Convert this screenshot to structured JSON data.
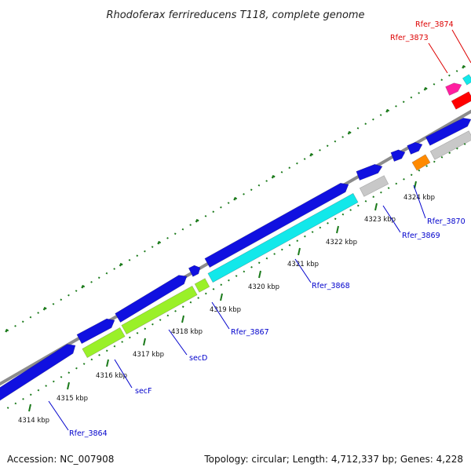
{
  "title": "Rhodoferax ferrireducens T118, complete genome",
  "footer": {
    "accession": "Accession: NC_007908",
    "summary": "Topology: circular; Length: 4,712,337 bp; Genes: 4,228"
  },
  "colors": {
    "backbone": "#8c8c8c",
    "tick": "#1a7a1a",
    "cds": "#1010e0",
    "cyan": "#12e8ea",
    "lime": "#9af028",
    "gray": "#c8c8c8",
    "orange": "#ff8a00",
    "magenta": "#ff1fa0",
    "red": "#ff0000",
    "label_blue": "#0000cc",
    "label_red": "#dd0000"
  },
  "kbp_labels": [
    "4314 kbp",
    "4315 kbp",
    "4316 kbp",
    "4317 kbp",
    "4318 kbp",
    "4319 kbp",
    "4320 kbp",
    "4321 kbp",
    "4322 kbp",
    "4323 kbp",
    "4324 kbp"
  ],
  "gene_labels": [
    "Rfer_3864",
    "secF",
    "secD",
    "Rfer_3867",
    "Rfer_3868",
    "Rfer_3869",
    "Rfer_3870",
    "Rfer_3873",
    "Rfer_3874"
  ]
}
